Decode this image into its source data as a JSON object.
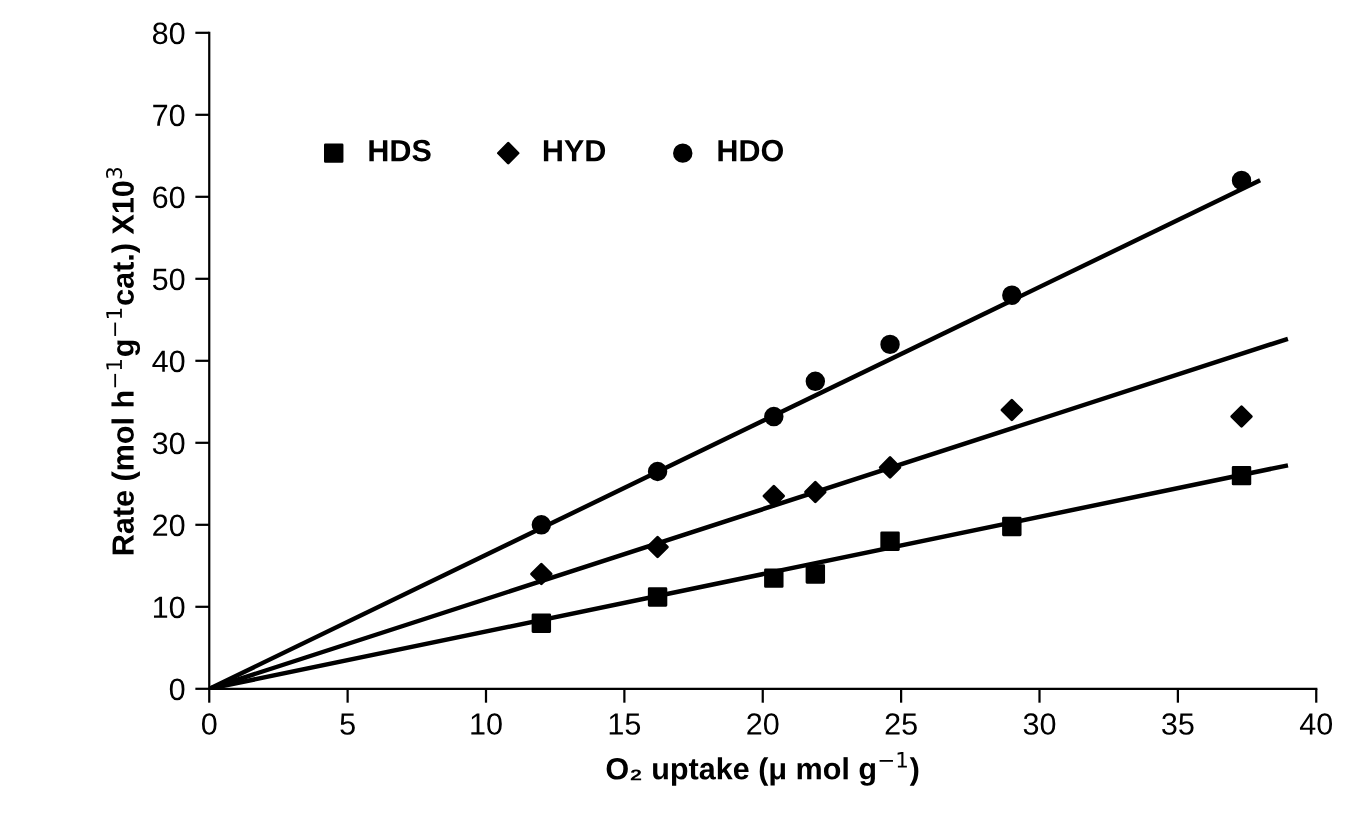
{
  "chart_data": {
    "type": "scatter",
    "xlabel": "O₂ uptake (μ mol g$^{−1}$)",
    "ylabel": "Rate (mol h$^{−1}$g$^{−1}$cat.) X10$^{3}$",
    "xlim": [
      0,
      40
    ],
    "ylim": [
      0,
      80
    ],
    "xticks": [
      0,
      5,
      10,
      15,
      20,
      25,
      30,
      35,
      40
    ],
    "yticks": [
      0,
      10,
      20,
      30,
      40,
      50,
      60,
      70,
      80
    ],
    "grid": false,
    "legend": "top left",
    "series": [
      {
        "name": "HDS",
        "color": "#000000",
        "marker": "square",
        "x": [
          12,
          16.2,
          20.4,
          21.9,
          24.6,
          29,
          37.3
        ],
        "values": [
          8,
          11.2,
          13.5,
          14,
          18,
          19.8,
          26
        ]
      },
      {
        "name": "HYD",
        "color": "#000000",
        "marker": "diamond",
        "x": [
          12,
          16.2,
          20.4,
          21.9,
          24.6,
          29,
          37.3
        ],
        "values": [
          14,
          17.3,
          23.5,
          24,
          27,
          34,
          33.2
        ]
      },
      {
        "name": "HDO",
        "color": "#000000",
        "marker": "circle",
        "x": [
          12,
          16.2,
          20.4,
          21.9,
          24.6,
          29,
          37.3
        ],
        "values": [
          20,
          26.5,
          33.2,
          37.5,
          42,
          48,
          62
        ]
      },
      {
        "type": "line",
        "color": "#000000",
        "marker": "none",
        "line_style": "solid",
        "x": [
          0,
          38.9
        ],
        "values": [
          0,
          27.2
        ]
      },
      {
        "type": "line",
        "color": "#000000",
        "marker": "none",
        "line_style": "solid",
        "x": [
          0,
          38.9
        ],
        "values": [
          0,
          42.6
        ]
      },
      {
        "type": "line",
        "color": "#000000",
        "marker": "none",
        "line_style": "solid",
        "x": [
          0,
          37.9
        ],
        "values": [
          0,
          61.9
        ]
      }
    ]
  }
}
